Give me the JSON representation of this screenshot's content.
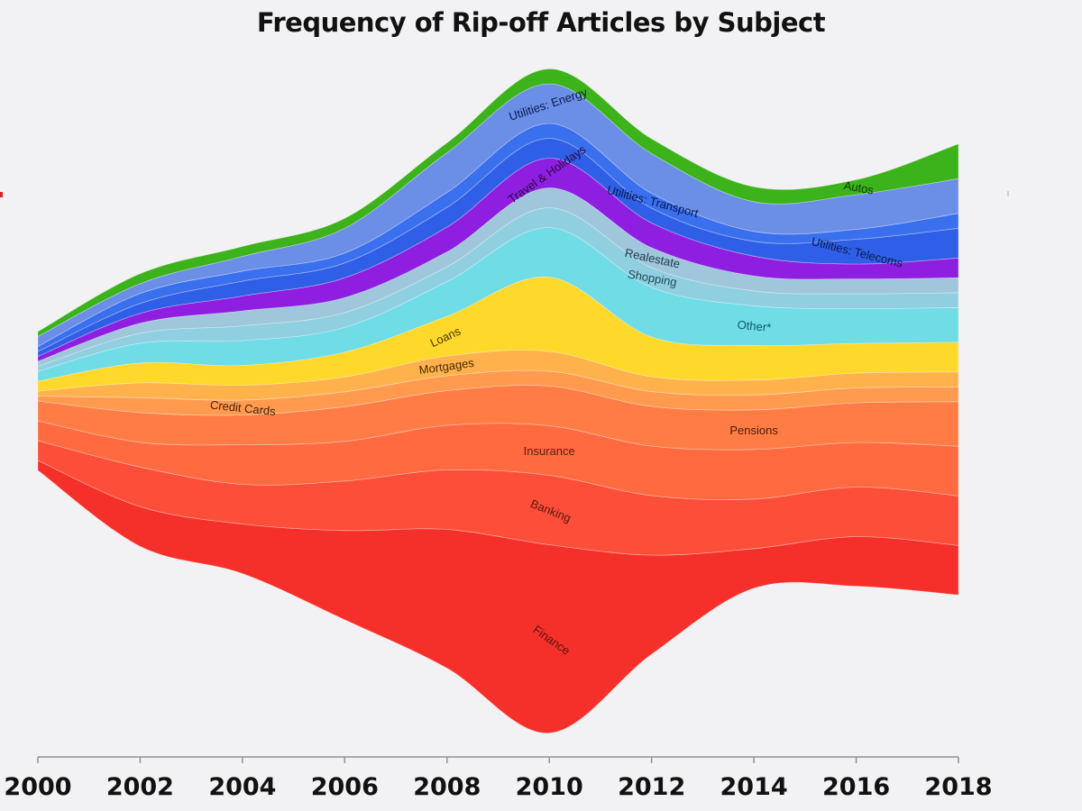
{
  "chart_data": {
    "type": "area",
    "subtype": "streamgraph",
    "title": "Frequency of Rip-off Articles by Subject",
    "xlabel": "",
    "ylabel": "",
    "x": [
      2000,
      2002,
      2004,
      2006,
      2008,
      2010,
      2012,
      2014,
      2016,
      2018
    ],
    "x_ticks": [
      "2000",
      "2002",
      "2004",
      "2006",
      "2008",
      "2010",
      "2012",
      "2014",
      "2016",
      "2018"
    ],
    "grid": false,
    "series": [
      {
        "name": "Finance",
        "color": "#f5302a",
        "label_color": "#5a1410",
        "values": [
          2,
          8,
          10,
          18,
          28,
          38,
          20,
          8,
          10,
          10
        ]
      },
      {
        "name": "Banking",
        "color": "#fc4e38",
        "label_color": "#5a1a10",
        "values": [
          4,
          8,
          8,
          10,
          12,
          14,
          12,
          10,
          10,
          10
        ]
      },
      {
        "name": "Insurance",
        "color": "#ff6a40",
        "label_color": "#5a2010",
        "values": [
          4,
          5,
          8,
          8,
          9,
          10,
          10,
          10,
          9,
          10
        ]
      },
      {
        "name": "Pensions",
        "color": "#ff7d45",
        "label_color": "#4a1c08",
        "values": [
          4,
          6,
          6,
          7,
          7,
          8,
          8,
          8,
          8,
          9
        ]
      },
      {
        "name": "Credit Cards",
        "color": "#ff9a4f",
        "label_color": "#4a2208",
        "values": [
          1,
          3,
          3,
          3,
          3,
          3,
          3,
          3,
          3,
          3
        ]
      },
      {
        "name": "Mortgages",
        "color": "#ffb24c",
        "label_color": "#4a2a08",
        "values": [
          1,
          3,
          3,
          3,
          4,
          4,
          3,
          3,
          3,
          3
        ]
      },
      {
        "name": "Loans",
        "color": "#fed82a",
        "label_color": "#4a3a00",
        "values": [
          2,
          4,
          4,
          5,
          8,
          15,
          8,
          7,
          6,
          6
        ]
      },
      {
        "name": "Other*",
        "color": "#6fdce6",
        "label_color": "#0a5a62",
        "values": [
          2,
          4,
          5,
          5,
          7,
          10,
          10,
          8,
          7,
          7
        ]
      },
      {
        "name": "Shopping",
        "color": "#8fcfe0",
        "label_color": "#1f4a56",
        "values": [
          1,
          2,
          3,
          3,
          3,
          4,
          4,
          3,
          3,
          3
        ]
      },
      {
        "name": "Realestate",
        "color": "#9fc6da",
        "label_color": "#1f3a4e",
        "values": [
          1,
          2,
          3,
          3,
          3,
          4,
          4,
          3,
          3,
          3
        ]
      },
      {
        "name": "Travel & Holidays",
        "color": "#8e1fe0",
        "label_color": "#2a0640",
        "values": [
          1,
          2,
          3,
          4,
          5,
          6,
          5,
          4,
          3,
          4
        ]
      },
      {
        "name": "Utilities: Telecoms",
        "color": "#2f5fe6",
        "label_color": "#0a1a50",
        "values": [
          1,
          2,
          3,
          3,
          4,
          4,
          3,
          3,
          5,
          6
        ]
      },
      {
        "name": "Utilities: Transport",
        "color": "#3a6fee",
        "label_color": "#0a1a50",
        "values": [
          1,
          2,
          2,
          2,
          3,
          3,
          3,
          2,
          2,
          3
        ]
      },
      {
        "name": "Utilities: Energy",
        "color": "#6b8ee6",
        "label_color": "#0a1a50",
        "values": [
          2,
          2,
          3,
          5,
          8,
          8,
          8,
          6,
          7,
          7
        ]
      },
      {
        "name": "Autos",
        "color": "#3cb21b",
        "label_color": "#0a3a05",
        "values": [
          1,
          2,
          2,
          2,
          2,
          3,
          3,
          3,
          3,
          7
        ]
      }
    ],
    "annotations": [
      "Other*"
    ]
  }
}
